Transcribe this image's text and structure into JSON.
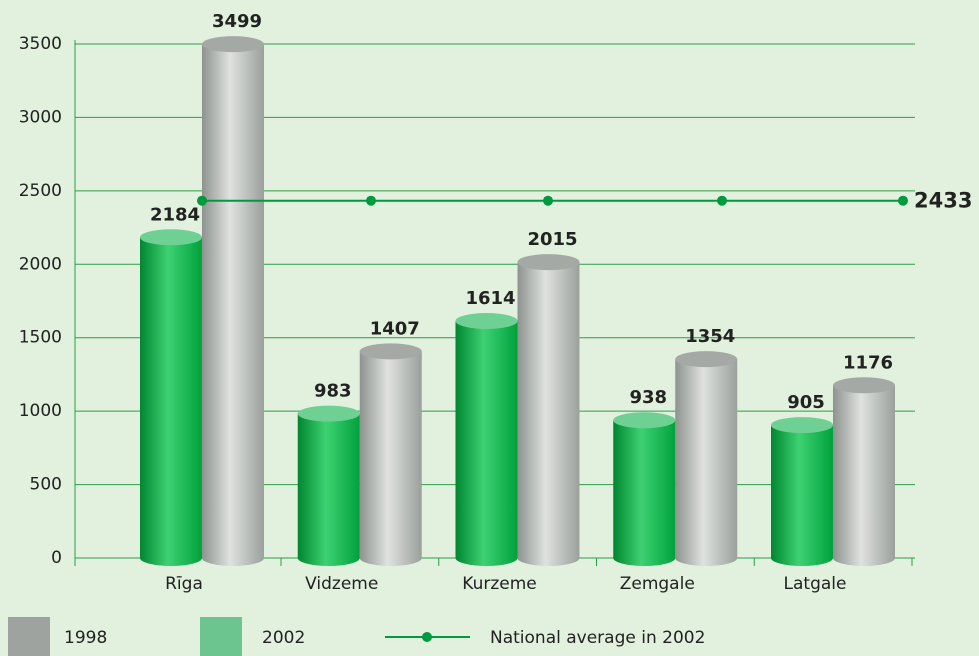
{
  "chart_data": {
    "type": "bar",
    "categories": [
      "Rīga",
      "Vidzeme",
      "Kurzeme",
      "Zemgale",
      "Latgale"
    ],
    "series": [
      {
        "name": "1998",
        "color": "#9ea3a0",
        "values": [
          3499,
          1407,
          2015,
          1354,
          1176
        ]
      },
      {
        "name": "2002",
        "color": "#6cc58e",
        "values": [
          2184,
          983,
          1614,
          938,
          905
        ]
      }
    ],
    "average": {
      "name": "National average in 2002",
      "value": 2433,
      "color": "#009a3e"
    },
    "ylim": [
      0,
      3500
    ],
    "yticks": [
      0,
      500,
      1000,
      1500,
      2000,
      2500,
      3000,
      3500
    ],
    "grid": true
  }
}
